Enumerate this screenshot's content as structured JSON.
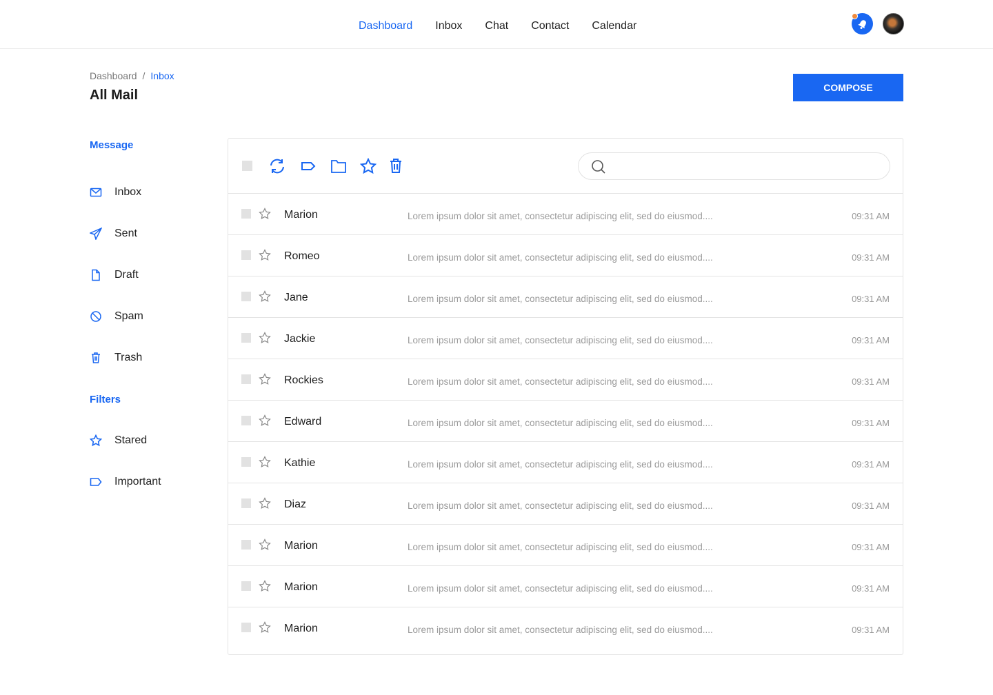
{
  "nav": {
    "items": [
      "Dashboard",
      "Inbox",
      "Chat",
      "Contact",
      "Calendar"
    ],
    "active": "Dashboard"
  },
  "breadcrumb": {
    "parent": "Dashboard",
    "sep": "/",
    "current": "Inbox"
  },
  "page_title": "All Mail",
  "compose_label": "COMPOSE",
  "sidebar": {
    "message_heading": "Message",
    "items": [
      "Inbox",
      "Sent",
      "Draft",
      "Spam",
      "Trash"
    ],
    "filters_heading": "Filters",
    "filters": [
      "Stared",
      "Important"
    ]
  },
  "search": {
    "placeholder": ""
  },
  "emails": [
    {
      "name": "Marion",
      "preview": "Lorem ipsum dolor sit amet, consectetur adipiscing elit, sed do eiusmod....",
      "time": "09:31 AM"
    },
    {
      "name": "Romeo",
      "preview": "Lorem ipsum dolor sit amet, consectetur adipiscing elit, sed do eiusmod....",
      "time": "09:31 AM"
    },
    {
      "name": "Jane",
      "preview": "Lorem ipsum dolor sit amet, consectetur adipiscing elit, sed do eiusmod....",
      "time": "09:31 AM"
    },
    {
      "name": "Jackie",
      "preview": "Lorem ipsum dolor sit amet, consectetur adipiscing elit, sed do eiusmod....",
      "time": "09:31 AM"
    },
    {
      "name": "Rockies",
      "preview": "Lorem ipsum dolor sit amet, consectetur adipiscing elit, sed do eiusmod....",
      "time": "09:31 AM"
    },
    {
      "name": "Edward",
      "preview": "Lorem ipsum dolor sit amet, consectetur adipiscing elit, sed do eiusmod....",
      "time": "09:31 AM"
    },
    {
      "name": "Kathie",
      "preview": "Lorem ipsum dolor sit amet, consectetur adipiscing elit, sed do eiusmod....",
      "time": "09:31 AM"
    },
    {
      "name": "Diaz",
      "preview": "Lorem ipsum dolor sit amet, consectetur adipiscing elit, sed do eiusmod....",
      "time": "09:31 AM"
    },
    {
      "name": "Marion",
      "preview": "Lorem ipsum dolor sit amet, consectetur adipiscing elit, sed do eiusmod....",
      "time": "09:31 AM"
    },
    {
      "name": "Marion",
      "preview": "Lorem ipsum dolor sit amet, consectetur adipiscing elit, sed do eiusmod....",
      "time": "09:31 AM"
    },
    {
      "name": "Marion",
      "preview": "Lorem ipsum dolor sit amet, consectetur adipiscing elit, sed do eiusmod....",
      "time": "09:31 AM"
    }
  ],
  "colors": {
    "accent": "#1967f2",
    "notification": "#f08a3c"
  }
}
